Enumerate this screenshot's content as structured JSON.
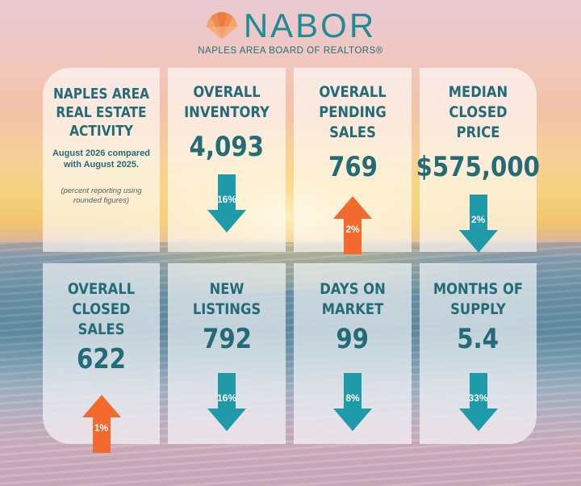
{
  "brand": {
    "name": "NABOR",
    "subtitle": "NAPLES AREA BOARD OF REALTORS®"
  },
  "intro": {
    "title": "NAPLES AREA REAL ESTATE ACTIVITY",
    "comparison": "August 2026 compared with August 2025.",
    "note": "(percent reporting using rounded figures)"
  },
  "colors": {
    "teal": "#1f9aa8",
    "orange": "#f26a2e",
    "text_teal": "#236b76"
  },
  "stats": [
    {
      "title": "OVERALL INVENTORY",
      "value": "4,093",
      "direction": "down",
      "change": "16%"
    },
    {
      "title": "OVERALL PENDING SALES",
      "value": "769",
      "direction": "up",
      "change": "2%"
    },
    {
      "title": "MEDIAN CLOSED PRICE",
      "value": "$575,000",
      "direction": "down",
      "change": "2%"
    },
    {
      "title": "OVERALL CLOSED SALES",
      "value": "622",
      "direction": "up",
      "change": "1%"
    },
    {
      "title": "NEW LISTINGS",
      "value": "792",
      "direction": "down",
      "change": "16%"
    },
    {
      "title": "DAYS ON MARKET",
      "value": "99",
      "direction": "down",
      "change": "8%"
    },
    {
      "title": "MONTHS OF SUPPLY",
      "value": "5.4",
      "direction": "down",
      "change": "33%"
    }
  ]
}
